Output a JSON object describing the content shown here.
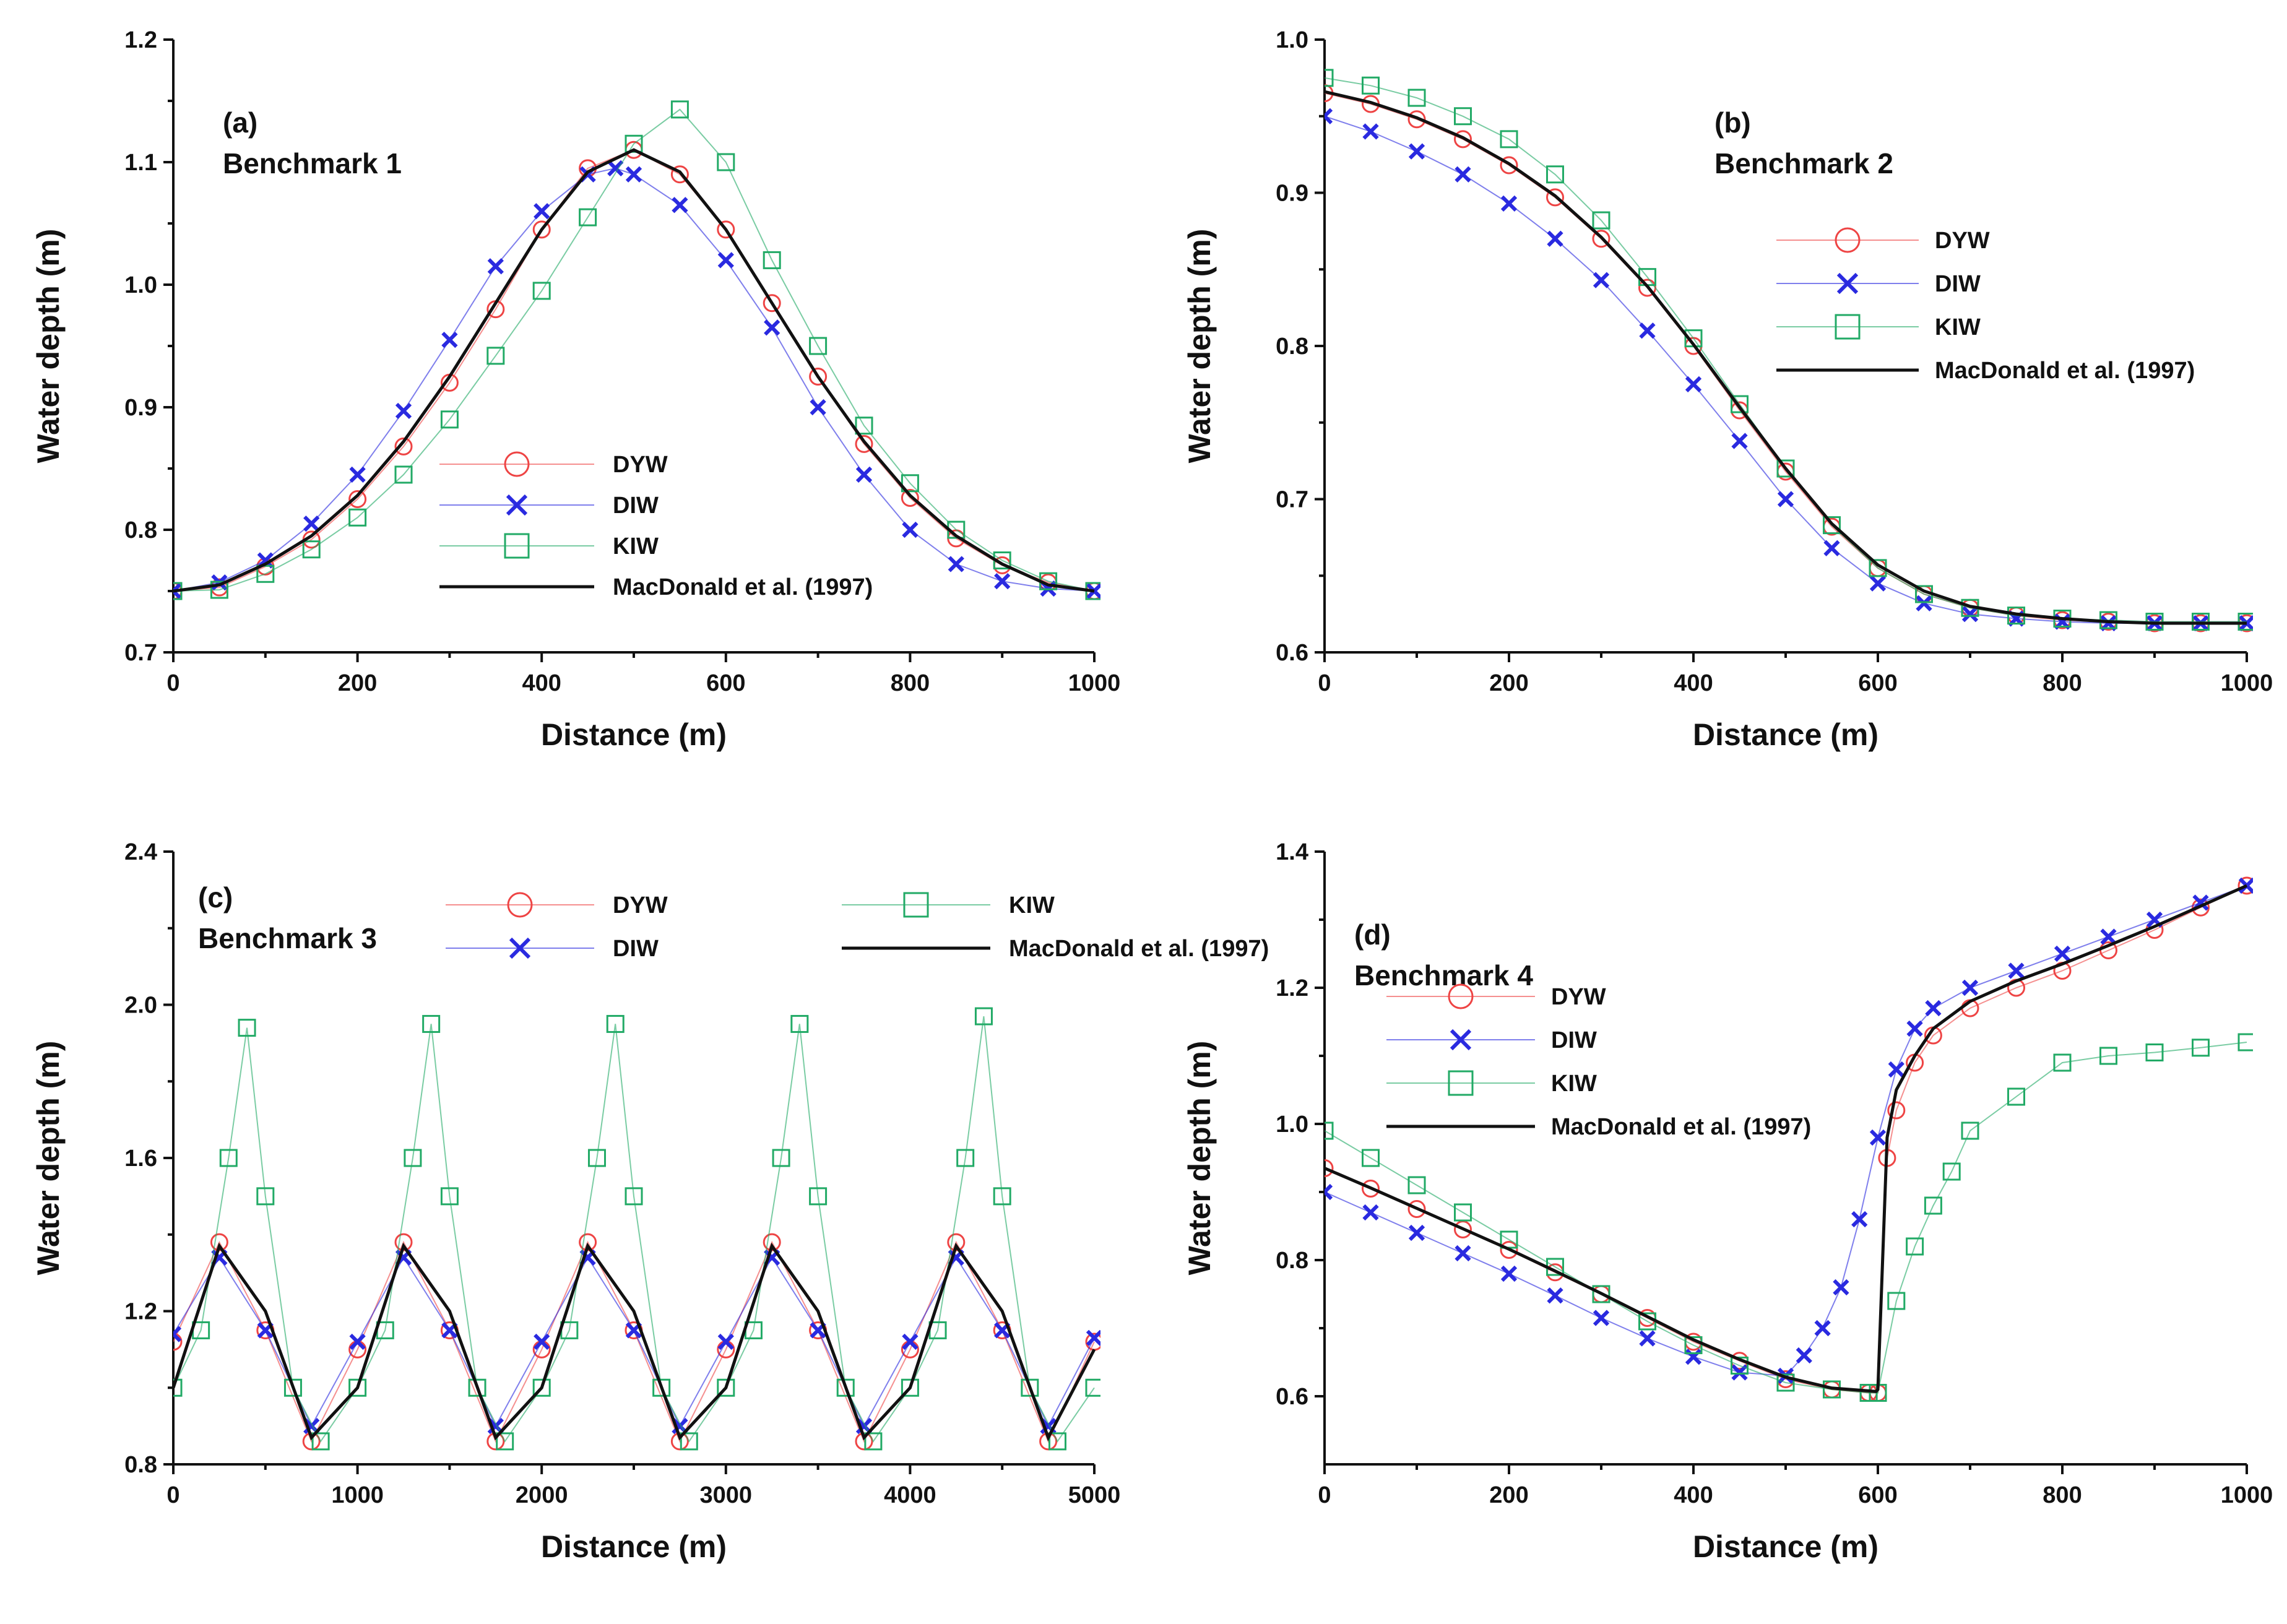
{
  "chart_data": [
    {
      "type": "line",
      "panel_label": "(a)",
      "title": "Benchmark 1",
      "xlabel": "Distance (m)",
      "ylabel": "Water depth (m)",
      "xlim": [
        0,
        1000
      ],
      "ylim": [
        0.7,
        1.2
      ],
      "xticks": [
        0,
        200,
        400,
        600,
        800,
        1000
      ],
      "yticks": [
        0.7,
        0.8,
        0.9,
        1.0,
        1.1,
        1.2
      ],
      "xtick_labels": [
        "0",
        "200",
        "400",
        "600",
        "800",
        "1000"
      ],
      "ytick_labels": [
        "0.7",
        "0.8",
        "0.9",
        "1.0",
        "1.1",
        "1.2"
      ],
      "legend_position": "center-bottom",
      "series": [
        {
          "name": "DYW",
          "color": "#ee4444",
          "marker": "circle",
          "x": [
            0,
            50,
            100,
            150,
            200,
            250,
            300,
            350,
            400,
            450,
            500,
            550,
            600,
            650,
            700,
            750,
            800,
            850,
            900,
            950,
            1000
          ],
          "y": [
            0.75,
            0.753,
            0.77,
            0.792,
            0.825,
            0.868,
            0.92,
            0.98,
            1.045,
            1.095,
            1.11,
            1.09,
            1.045,
            0.985,
            0.925,
            0.87,
            0.826,
            0.793,
            0.771,
            0.757,
            0.75
          ]
        },
        {
          "name": "DIW",
          "color": "#2a2ae0",
          "marker": "cross",
          "x": [
            0,
            50,
            100,
            150,
            200,
            250,
            300,
            350,
            400,
            450,
            480,
            500,
            550,
            600,
            650,
            700,
            750,
            800,
            850,
            900,
            950,
            1000
          ],
          "y": [
            0.75,
            0.757,
            0.775,
            0.805,
            0.845,
            0.897,
            0.955,
            1.015,
            1.06,
            1.09,
            1.095,
            1.09,
            1.065,
            1.02,
            0.965,
            0.9,
            0.845,
            0.8,
            0.772,
            0.758,
            0.752,
            0.75
          ]
        },
        {
          "name": "KIW",
          "color": "#22aa66",
          "marker": "square",
          "x": [
            0,
            50,
            100,
            150,
            200,
            250,
            300,
            350,
            400,
            450,
            500,
            550,
            600,
            650,
            700,
            750,
            800,
            850,
            900,
            950,
            1000
          ],
          "y": [
            0.75,
            0.751,
            0.764,
            0.784,
            0.81,
            0.845,
            0.89,
            0.942,
            0.995,
            1.055,
            1.115,
            1.143,
            1.1,
            1.02,
            0.95,
            0.885,
            0.838,
            0.8,
            0.775,
            0.758,
            0.75
          ]
        },
        {
          "name": "MacDonald et al. (1997)",
          "color": "#111111",
          "marker": "none",
          "x": [
            0,
            50,
            100,
            150,
            200,
            250,
            300,
            350,
            400,
            450,
            500,
            550,
            600,
            650,
            700,
            750,
            800,
            850,
            900,
            950,
            1000
          ],
          "y": [
            0.75,
            0.755,
            0.772,
            0.795,
            0.828,
            0.872,
            0.925,
            0.985,
            1.045,
            1.092,
            1.11,
            1.092,
            1.045,
            0.985,
            0.925,
            0.872,
            0.828,
            0.795,
            0.772,
            0.755,
            0.75
          ]
        }
      ]
    },
    {
      "type": "line",
      "panel_label": "(b)",
      "title": "Benchmark 2",
      "xlabel": "Distance (m)",
      "ylabel": "Water depth (m)",
      "xlim": [
        0,
        1000
      ],
      "ylim": [
        0.6,
        1.0
      ],
      "xticks": [
        0,
        200,
        400,
        600,
        800,
        1000
      ],
      "yticks": [
        0.6,
        0.7,
        0.8,
        0.9,
        1.0
      ],
      "xtick_labels": [
        "0",
        "200",
        "400",
        "600",
        "800",
        "1000"
      ],
      "ytick_labels": [
        "0.6",
        "0.7",
        "0.8",
        "0.9",
        "1.0"
      ],
      "legend_position": "top-right",
      "series": [
        {
          "name": "DYW",
          "color": "#ee4444",
          "marker": "circle",
          "x": [
            0,
            50,
            100,
            150,
            200,
            250,
            300,
            350,
            400,
            450,
            500,
            550,
            600,
            650,
            700,
            750,
            800,
            850,
            900,
            950,
            1000
          ],
          "y": [
            0.965,
            0.958,
            0.948,
            0.935,
            0.918,
            0.897,
            0.87,
            0.838,
            0.8,
            0.758,
            0.718,
            0.682,
            0.655,
            0.638,
            0.629,
            0.624,
            0.621,
            0.62,
            0.619,
            0.619,
            0.619
          ]
        },
        {
          "name": "DIW",
          "color": "#2a2ae0",
          "marker": "cross",
          "x": [
            0,
            50,
            100,
            150,
            200,
            250,
            300,
            350,
            400,
            450,
            500,
            550,
            600,
            650,
            700,
            750,
            800,
            850,
            900,
            950,
            1000
          ],
          "y": [
            0.95,
            0.94,
            0.927,
            0.912,
            0.893,
            0.87,
            0.843,
            0.81,
            0.775,
            0.738,
            0.7,
            0.668,
            0.645,
            0.632,
            0.625,
            0.622,
            0.62,
            0.619,
            0.619,
            0.619,
            0.619
          ]
        },
        {
          "name": "KIW",
          "color": "#22aa66",
          "marker": "square",
          "x": [
            0,
            50,
            100,
            150,
            200,
            250,
            300,
            350,
            400,
            450,
            500,
            550,
            600,
            650,
            700,
            750,
            800,
            850,
            900,
            950,
            1000
          ],
          "y": [
            0.975,
            0.97,
            0.962,
            0.95,
            0.935,
            0.912,
            0.882,
            0.845,
            0.805,
            0.762,
            0.72,
            0.683,
            0.655,
            0.638,
            0.629,
            0.624,
            0.622,
            0.621,
            0.62,
            0.62,
            0.62
          ]
        },
        {
          "name": "MacDonald et al. (1997)",
          "color": "#111111",
          "marker": "none",
          "x": [
            0,
            50,
            100,
            150,
            200,
            250,
            300,
            350,
            400,
            450,
            500,
            550,
            600,
            650,
            700,
            750,
            800,
            850,
            900,
            950,
            1000
          ],
          "y": [
            0.966,
            0.959,
            0.949,
            0.936,
            0.919,
            0.898,
            0.871,
            0.839,
            0.801,
            0.76,
            0.72,
            0.684,
            0.657,
            0.64,
            0.63,
            0.625,
            0.622,
            0.62,
            0.619,
            0.619,
            0.619
          ]
        }
      ]
    },
    {
      "type": "line",
      "panel_label": "(c)",
      "title": "Benchmark 3",
      "xlabel": "Distance (m)",
      "ylabel": "Water depth (m)",
      "xlim": [
        0,
        5000
      ],
      "ylim": [
        0.8,
        2.4
      ],
      "xticks": [
        0,
        1000,
        2000,
        3000,
        4000,
        5000
      ],
      "yticks": [
        0.8,
        1.2,
        1.6,
        2.0,
        2.4
      ],
      "xtick_labels": [
        "0",
        "1000",
        "2000",
        "3000",
        "4000",
        "5000"
      ],
      "ytick_labels": [
        "0.8",
        "1.2",
        "1.6",
        "2.0",
        "2.4"
      ],
      "legend_position": "top",
      "series": [
        {
          "name": "DYW",
          "color": "#ee4444",
          "marker": "circle",
          "x": [
            0,
            250,
            500,
            750,
            1000,
            1250,
            1500,
            1750,
            2000,
            2250,
            2500,
            2750,
            3000,
            3250,
            3500,
            3750,
            4000,
            4250,
            4500,
            4750,
            5000
          ],
          "y": [
            1.12,
            1.38,
            1.15,
            0.86,
            1.1,
            1.38,
            1.15,
            0.86,
            1.1,
            1.38,
            1.15,
            0.86,
            1.1,
            1.38,
            1.15,
            0.86,
            1.1,
            1.38,
            1.15,
            0.86,
            1.12
          ]
        },
        {
          "name": "DIW",
          "color": "#2a2ae0",
          "marker": "cross",
          "x": [
            0,
            250,
            500,
            750,
            1000,
            1250,
            1500,
            1750,
            2000,
            2250,
            2500,
            2750,
            3000,
            3250,
            3500,
            3750,
            4000,
            4250,
            4500,
            4750,
            5000
          ],
          "y": [
            1.14,
            1.34,
            1.15,
            0.9,
            1.12,
            1.34,
            1.15,
            0.9,
            1.12,
            1.34,
            1.15,
            0.9,
            1.12,
            1.34,
            1.15,
            0.9,
            1.12,
            1.34,
            1.15,
            0.9,
            1.13
          ]
        },
        {
          "name": "KIW",
          "color": "#22aa66",
          "marker": "square",
          "x": [
            0,
            150,
            300,
            400,
            500,
            650,
            800,
            1000,
            1150,
            1300,
            1400,
            1500,
            1650,
            1800,
            2000,
            2150,
            2300,
            2400,
            2500,
            2650,
            2800,
            3000,
            3150,
            3300,
            3400,
            3500,
            3650,
            3800,
            4000,
            4150,
            4300,
            4400,
            4500,
            4650,
            4800,
            5000
          ],
          "y": [
            1.0,
            1.15,
            1.6,
            1.94,
            1.5,
            1.0,
            0.86,
            1.0,
            1.15,
            1.6,
            1.95,
            1.5,
            1.0,
            0.86,
            1.0,
            1.15,
            1.6,
            1.95,
            1.5,
            1.0,
            0.86,
            1.0,
            1.15,
            1.6,
            1.95,
            1.5,
            1.0,
            0.86,
            1.0,
            1.15,
            1.6,
            1.97,
            1.5,
            1.0,
            0.86,
            1.0
          ]
        },
        {
          "name": "MacDonald et al. (1997)",
          "color": "#111111",
          "marker": "none",
          "x": [
            0,
            250,
            500,
            750,
            1000,
            1250,
            1500,
            1750,
            2000,
            2250,
            2500,
            2750,
            3000,
            3250,
            3500,
            3750,
            4000,
            4250,
            4500,
            4750,
            5000
          ],
          "y": [
            1.0,
            1.37,
            1.2,
            0.87,
            1.0,
            1.37,
            1.2,
            0.87,
            1.0,
            1.37,
            1.2,
            0.87,
            1.0,
            1.37,
            1.2,
            0.87,
            1.0,
            1.37,
            1.2,
            0.87,
            1.1
          ]
        }
      ]
    },
    {
      "type": "line",
      "panel_label": "(d)",
      "title": "Benchmark 4",
      "xlabel": "Distance (m)",
      "ylabel": "Water depth (m)",
      "xlim": [
        0,
        1000
      ],
      "ylim": [
        0.5,
        1.4
      ],
      "xticks": [
        0,
        200,
        400,
        600,
        800,
        1000
      ],
      "yticks": [
        0.6,
        0.8,
        1.0,
        1.2,
        1.4
      ],
      "xtick_labels": [
        "0",
        "200",
        "400",
        "600",
        "800",
        "1000"
      ],
      "ytick_labels": [
        "0.6",
        "0.8",
        "1.0",
        "1.2",
        "1.4"
      ],
      "legend_position": "top-left",
      "series": [
        {
          "name": "DYW",
          "color": "#ee4444",
          "marker": "circle",
          "x": [
            0,
            50,
            100,
            150,
            200,
            250,
            300,
            350,
            400,
            450,
            500,
            550,
            590,
            600,
            610,
            620,
            640,
            660,
            700,
            750,
            800,
            850,
            900,
            950,
            1000
          ],
          "y": [
            0.935,
            0.905,
            0.875,
            0.845,
            0.815,
            0.782,
            0.75,
            0.715,
            0.68,
            0.652,
            0.625,
            0.61,
            0.605,
            0.605,
            0.95,
            1.02,
            1.09,
            1.13,
            1.17,
            1.2,
            1.225,
            1.255,
            1.285,
            1.318,
            1.35
          ]
        },
        {
          "name": "DIW",
          "color": "#2a2ae0",
          "marker": "cross",
          "x": [
            0,
            50,
            100,
            150,
            200,
            250,
            300,
            350,
            400,
            450,
            500,
            520,
            540,
            560,
            580,
            600,
            620,
            640,
            660,
            700,
            750,
            800,
            850,
            900,
            950,
            1000
          ],
          "y": [
            0.9,
            0.87,
            0.84,
            0.81,
            0.78,
            0.748,
            0.715,
            0.685,
            0.658,
            0.635,
            0.63,
            0.66,
            0.7,
            0.76,
            0.86,
            0.98,
            1.08,
            1.14,
            1.17,
            1.2,
            1.225,
            1.25,
            1.275,
            1.3,
            1.325,
            1.35
          ]
        },
        {
          "name": "KIW",
          "color": "#22aa66",
          "marker": "square",
          "x": [
            0,
            50,
            100,
            150,
            200,
            250,
            300,
            350,
            400,
            450,
            500,
            550,
            590,
            600,
            620,
            640,
            660,
            680,
            700,
            750,
            800,
            850,
            900,
            950,
            1000
          ],
          "y": [
            0.99,
            0.95,
            0.91,
            0.87,
            0.83,
            0.79,
            0.75,
            0.71,
            0.675,
            0.645,
            0.62,
            0.61,
            0.605,
            0.605,
            0.74,
            0.82,
            0.88,
            0.93,
            0.99,
            1.04,
            1.09,
            1.1,
            1.105,
            1.112,
            1.12
          ]
        },
        {
          "name": "MacDonald et al. (1997)",
          "color": "#111111",
          "marker": "none",
          "x": [
            0,
            50,
            100,
            150,
            200,
            250,
            300,
            350,
            400,
            450,
            500,
            550,
            598,
            600,
            610,
            620,
            640,
            660,
            700,
            750,
            800,
            850,
            900,
            950,
            1000
          ],
          "y": [
            0.935,
            0.906,
            0.876,
            0.846,
            0.816,
            0.784,
            0.751,
            0.717,
            0.683,
            0.654,
            0.628,
            0.612,
            0.607,
            0.61,
            0.98,
            1.05,
            1.1,
            1.14,
            1.18,
            1.21,
            1.235,
            1.262,
            1.29,
            1.32,
            1.35
          ]
        }
      ]
    }
  ]
}
